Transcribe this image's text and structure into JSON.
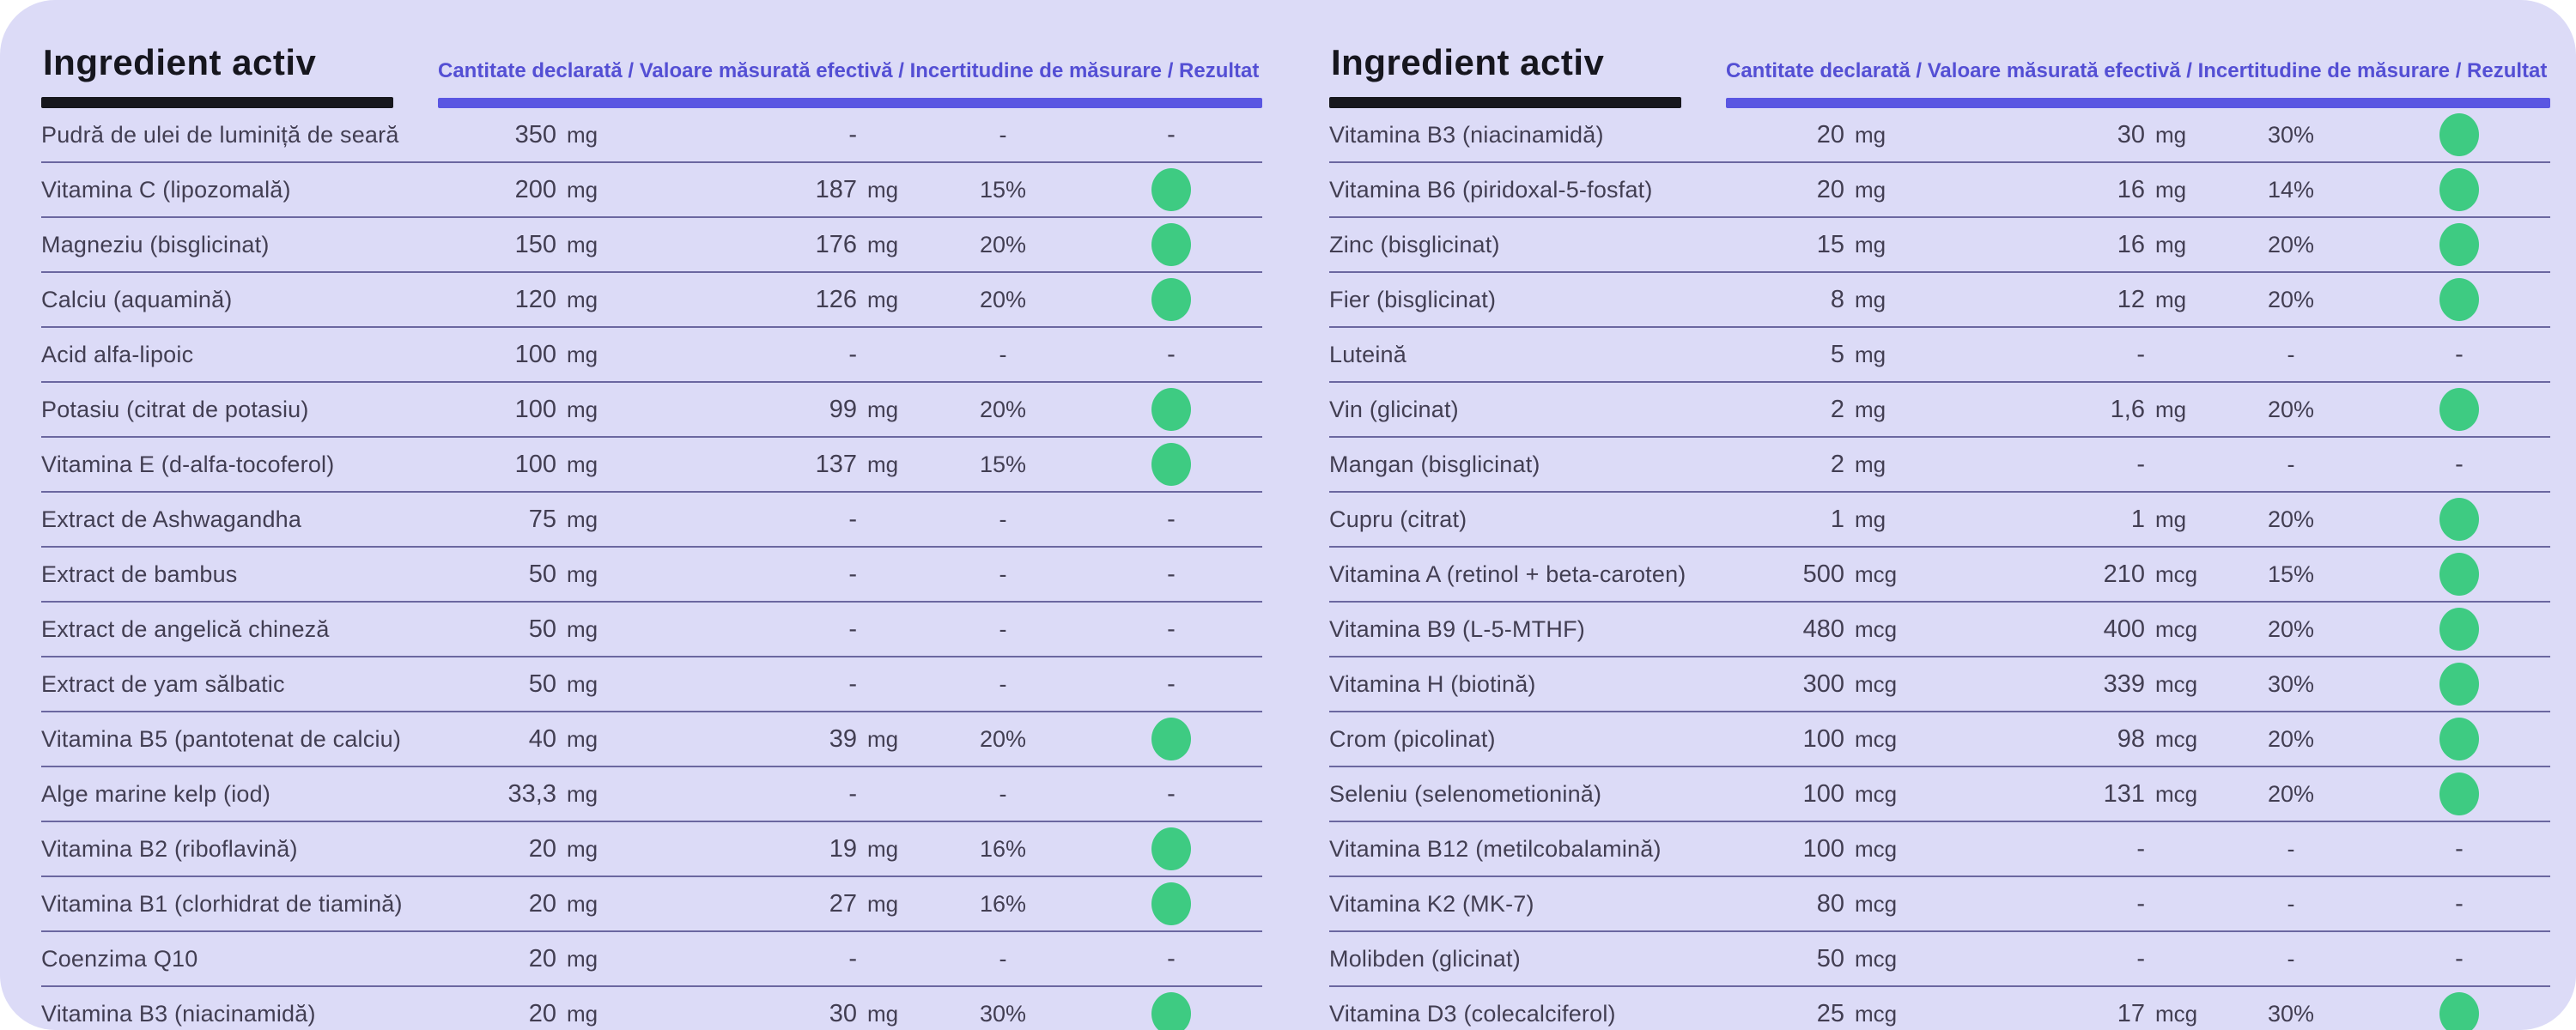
{
  "colors": {
    "sheet_background": "#dcdbf7",
    "accent_purple": "#544fd4",
    "accent_bar_purple": "#5a56e2",
    "header_black": "#17171d",
    "row_text": "#423e52",
    "separator_line": "#6b67a0",
    "pass_green": "#3ecb82"
  },
  "panels": [
    {
      "title": "Ingredient activ",
      "columns_legend": "Cantitate declarată / Valoare măsurată efectivă / Incertitudine de măsurare / Rezultat",
      "rows": [
        {
          "name": "Pudră de ulei de luminiță de seară",
          "declared": "350",
          "declared_unit": "mg",
          "measured": "-",
          "measured_unit": "",
          "uncertainty": "-",
          "result": "-"
        },
        {
          "name": "Vitamina C (lipozomală)",
          "declared": "200",
          "declared_unit": "mg",
          "measured": "187",
          "measured_unit": "mg",
          "uncertainty": "15%",
          "result": "pass"
        },
        {
          "name": "Magneziu (bisglicinat)",
          "declared": "150",
          "declared_unit": "mg",
          "measured": "176",
          "measured_unit": "mg",
          "uncertainty": "20%",
          "result": "pass"
        },
        {
          "name": "Calciu (aquamină)",
          "declared": "120",
          "declared_unit": "mg",
          "measured": "126",
          "measured_unit": "mg",
          "uncertainty": "20%",
          "result": "pass"
        },
        {
          "name": "Acid alfa-lipoic",
          "declared": "100",
          "declared_unit": "mg",
          "measured": "-",
          "measured_unit": "",
          "uncertainty": "-",
          "result": "-"
        },
        {
          "name": "Potasiu (citrat de potasiu)",
          "declared": "100",
          "declared_unit": "mg",
          "measured": "99",
          "measured_unit": "mg",
          "uncertainty": "20%",
          "result": "pass"
        },
        {
          "name": "Vitamina E (d-alfa-tocoferol)",
          "declared": "100",
          "declared_unit": "mg",
          "measured": "137",
          "measured_unit": "mg",
          "uncertainty": "15%",
          "result": "pass"
        },
        {
          "name": "Extract de Ashwagandha",
          "declared": "75",
          "declared_unit": "mg",
          "measured": "-",
          "measured_unit": "",
          "uncertainty": "-",
          "result": "-"
        },
        {
          "name": "Extract de bambus",
          "declared": "50",
          "declared_unit": "mg",
          "measured": "-",
          "measured_unit": "",
          "uncertainty": "-",
          "result": "-"
        },
        {
          "name": "Extract de angelică chineză",
          "declared": "50",
          "declared_unit": "mg",
          "measured": "-",
          "measured_unit": "",
          "uncertainty": "-",
          "result": "-"
        },
        {
          "name": "Extract de yam sălbatic",
          "declared": "50",
          "declared_unit": "mg",
          "measured": "-",
          "measured_unit": "",
          "uncertainty": "-",
          "result": "-"
        },
        {
          "name": "Vitamina B5 (pantotenat de calciu)",
          "declared": "40",
          "declared_unit": "mg",
          "measured": "39",
          "measured_unit": "mg",
          "uncertainty": "20%",
          "result": "pass"
        },
        {
          "name": "Alge marine kelp (iod)",
          "declared": "33,3",
          "declared_unit": "mg",
          "measured": "-",
          "measured_unit": "",
          "uncertainty": "-",
          "result": "-"
        },
        {
          "name": "Vitamina B2 (riboflavină)",
          "declared": "20",
          "declared_unit": "mg",
          "measured": "19",
          "measured_unit": "mg",
          "uncertainty": "16%",
          "result": "pass"
        },
        {
          "name": "Vitamina B1 (clorhidrat de tiamină)",
          "declared": "20",
          "declared_unit": "mg",
          "measured": "27",
          "measured_unit": "mg",
          "uncertainty": "16%",
          "result": "pass"
        },
        {
          "name": "Coenzima Q10",
          "declared": "20",
          "declared_unit": "mg",
          "measured": "-",
          "measured_unit": "",
          "uncertainty": "-",
          "result": "-"
        },
        {
          "name": "Vitamina B3 (niacinamidă)",
          "declared": "20",
          "declared_unit": "mg",
          "measured": "30",
          "measured_unit": "mg",
          "uncertainty": "30%",
          "result": "pass"
        }
      ]
    },
    {
      "title": "Ingredient activ",
      "columns_legend": "Cantitate declarată / Valoare măsurată efectivă / Incertitudine de măsurare / Rezultat",
      "rows": [
        {
          "name": "Vitamina B3 (niacinamidă)",
          "declared": "20",
          "declared_unit": "mg",
          "measured": "30",
          "measured_unit": "mg",
          "uncertainty": "30%",
          "result": "pass"
        },
        {
          "name": "Vitamina B6 (piridoxal-5-fosfat)",
          "declared": "20",
          "declared_unit": "mg",
          "measured": "16",
          "measured_unit": "mg",
          "uncertainty": "14%",
          "result": "pass"
        },
        {
          "name": "Zinc (bisglicinat)",
          "declared": "15",
          "declared_unit": "mg",
          "measured": "16",
          "measured_unit": "mg",
          "uncertainty": "20%",
          "result": "pass"
        },
        {
          "name": "Fier (bisglicinat)",
          "declared": "8",
          "declared_unit": "mg",
          "measured": "12",
          "measured_unit": "mg",
          "uncertainty": "20%",
          "result": "pass"
        },
        {
          "name": "Luteină",
          "declared": "5",
          "declared_unit": "mg",
          "measured": "-",
          "measured_unit": "",
          "uncertainty": "-",
          "result": "-"
        },
        {
          "name": "Vin (glicinat)",
          "declared": "2",
          "declared_unit": "mg",
          "measured": "1,6",
          "measured_unit": "mg",
          "uncertainty": "20%",
          "result": "pass"
        },
        {
          "name": "Mangan (bisglicinat)",
          "declared": "2",
          "declared_unit": "mg",
          "measured": "-",
          "measured_unit": "",
          "uncertainty": "-",
          "result": "-"
        },
        {
          "name": "Cupru (citrat)",
          "declared": "1",
          "declared_unit": "mg",
          "measured": "1",
          "measured_unit": "mg",
          "uncertainty": "20%",
          "result": "pass"
        },
        {
          "name": "Vitamina A (retinol + beta-caroten)",
          "declared": "500",
          "declared_unit": "mcg",
          "measured": "210",
          "measured_unit": "mcg",
          "uncertainty": "15%",
          "result": "pass"
        },
        {
          "name": "Vitamina B9 (L-5-MTHF)",
          "declared": "480",
          "declared_unit": "mcg",
          "measured": "400",
          "measured_unit": "mcg",
          "uncertainty": "20%",
          "result": "pass"
        },
        {
          "name": "Vitamina H (biotină)",
          "declared": "300",
          "declared_unit": "mcg",
          "measured": "339",
          "measured_unit": "mcg",
          "uncertainty": "30%",
          "result": "pass"
        },
        {
          "name": "Crom (picolinat)",
          "declared": "100",
          "declared_unit": "mcg",
          "measured": "98",
          "measured_unit": "mcg",
          "uncertainty": "20%",
          "result": "pass"
        },
        {
          "name": "Seleniu (selenometionină)",
          "declared": "100",
          "declared_unit": "mcg",
          "measured": "131",
          "measured_unit": "mcg",
          "uncertainty": "20%",
          "result": "pass"
        },
        {
          "name": "Vitamina B12 (metilcobalamină)",
          "declared": "100",
          "declared_unit": "mcg",
          "measured": "-",
          "measured_unit": "",
          "uncertainty": "-",
          "result": "-"
        },
        {
          "name": "Vitamina K2 (MK-7)",
          "declared": "80",
          "declared_unit": "mcg",
          "measured": "-",
          "measured_unit": "",
          "uncertainty": "-",
          "result": "-"
        },
        {
          "name": "Molibden (glicinat)",
          "declared": "50",
          "declared_unit": "mcg",
          "measured": "-",
          "measured_unit": "",
          "uncertainty": "-",
          "result": "-"
        },
        {
          "name": "Vitamina D3 (colecalciferol)",
          "declared": "25",
          "declared_unit": "mcg",
          "measured": "17",
          "measured_unit": "mcg",
          "uncertainty": "30%",
          "result": "pass"
        }
      ]
    }
  ]
}
